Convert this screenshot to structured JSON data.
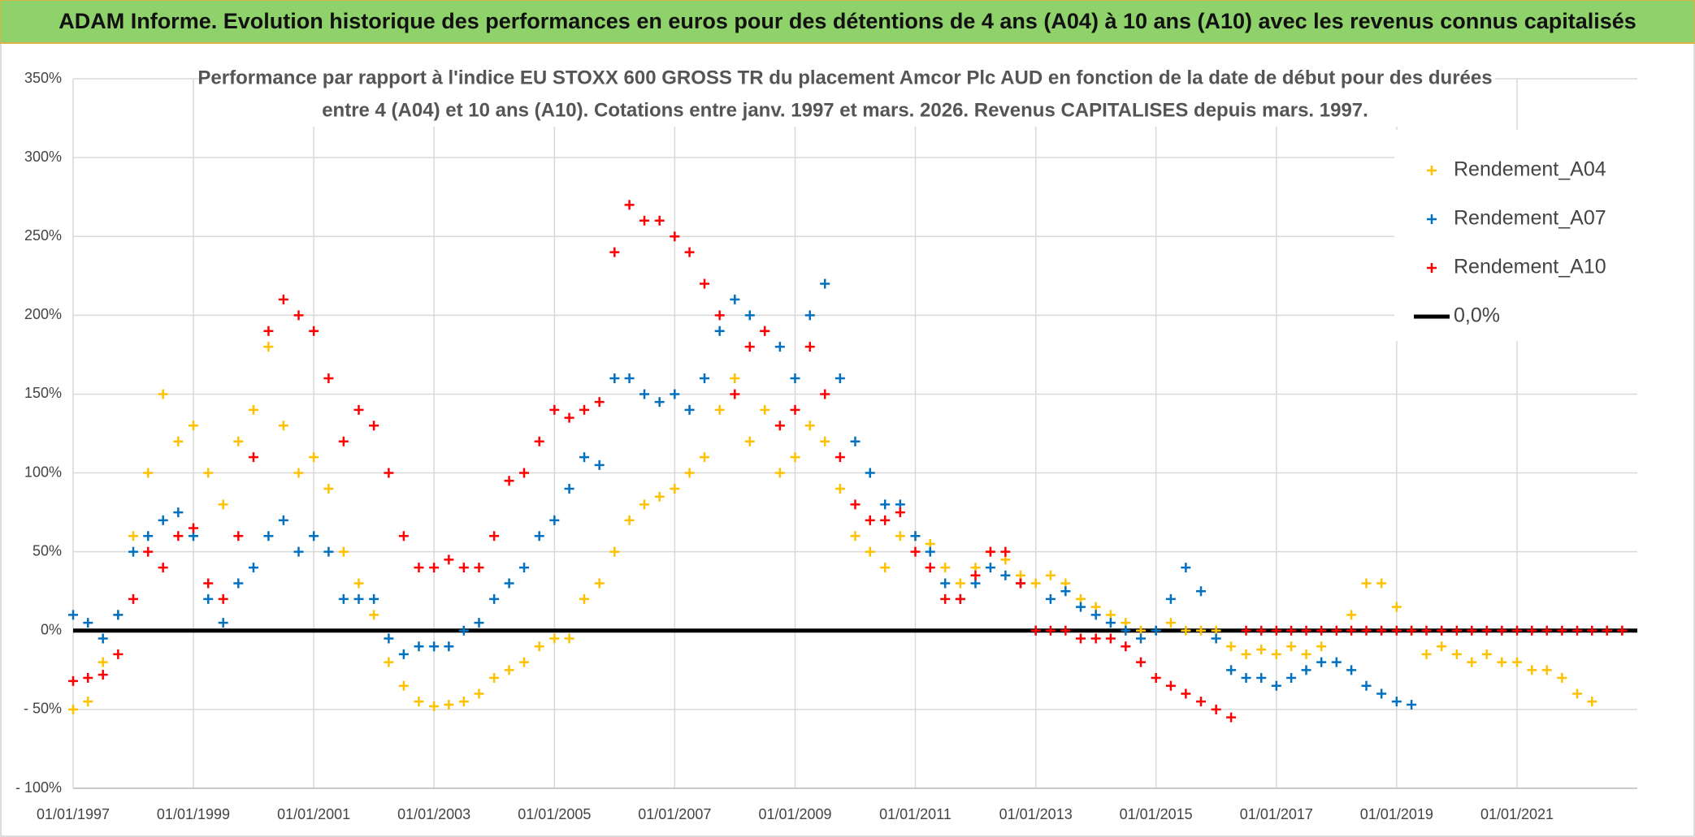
{
  "page_title": "ADAM Informe. Evolution historique des performances en euros pour des détentions de 4 ans (A04) à 10 ans (A10) avec les revenus connus capitalisés",
  "chart_data": {
    "type": "scatter",
    "title": [
      "Performance par rapport à l'indice EU STOXX 600 GROSS TR  du placement Amcor Plc AUD en fonction de la date de début pour des durées",
      "entre 4 (A04) et 10 ans (A10). Cotations entre janv. 1997 et mars. 2026. Revenus CAPITALISES depuis mars. 1997."
    ],
    "x": [
      "1997-01-01",
      "1997-04-01",
      "1997-07-01",
      "1997-10-01",
      "1998-01-01",
      "1998-04-01",
      "1998-07-01",
      "1998-10-01",
      "1999-01-01",
      "1999-04-01",
      "1999-07-01",
      "1999-10-01",
      "2000-01-01",
      "2000-04-01",
      "2000-07-01",
      "2000-10-01",
      "2001-01-01",
      "2001-04-01",
      "2001-07-01",
      "2001-10-01",
      "2002-01-01",
      "2002-04-01",
      "2002-07-01",
      "2002-10-01",
      "2003-01-01",
      "2003-04-01",
      "2003-07-01",
      "2003-10-01",
      "2004-01-01",
      "2004-04-01",
      "2004-07-01",
      "2004-10-01",
      "2005-01-01",
      "2005-04-01",
      "2005-07-01",
      "2005-10-01",
      "2006-01-01",
      "2006-04-01",
      "2006-07-01",
      "2006-10-01",
      "2007-01-01",
      "2007-04-01",
      "2007-07-01",
      "2007-10-01",
      "2008-01-01",
      "2008-04-01",
      "2008-07-01",
      "2008-10-01",
      "2009-01-01",
      "2009-04-01",
      "2009-07-01",
      "2009-10-01",
      "2010-01-01",
      "2010-04-01",
      "2010-07-01",
      "2010-10-01",
      "2011-01-01",
      "2011-04-01",
      "2011-07-01",
      "2011-10-01",
      "2012-01-01",
      "2012-04-01",
      "2012-07-01",
      "2012-10-01",
      "2013-01-01",
      "2013-04-01",
      "2013-07-01",
      "2013-10-01",
      "2014-01-01",
      "2014-04-01",
      "2014-07-01",
      "2014-10-01",
      "2015-01-01",
      "2015-04-01",
      "2015-07-01",
      "2015-10-01",
      "2016-01-01",
      "2016-04-01",
      "2016-07-01",
      "2016-10-01",
      "2017-01-01",
      "2017-04-01",
      "2017-07-01",
      "2017-10-01",
      "2018-01-01",
      "2018-04-01",
      "2018-07-01",
      "2018-10-01",
      "2019-01-01",
      "2019-04-01",
      "2019-07-01",
      "2019-10-01",
      "2020-01-01",
      "2020-04-01",
      "2020-07-01",
      "2020-10-01",
      "2021-01-01",
      "2021-04-01",
      "2021-07-01",
      "2021-10-01",
      "2022-01-01",
      "2022-04-01",
      "2022-07-01",
      "2022-10-01"
    ],
    "series": [
      {
        "name": "Rendement_A04",
        "color": "#FFC000",
        "values": [
          -50,
          -45,
          -20,
          10,
          60,
          100,
          150,
          120,
          130,
          100,
          80,
          120,
          140,
          180,
          130,
          100,
          110,
          90,
          50,
          30,
          10,
          -20,
          -35,
          -45,
          -48,
          -47,
          -45,
          -40,
          -30,
          -25,
          -20,
          -10,
          -5,
          -5,
          20,
          30,
          50,
          70,
          80,
          85,
          90,
          100,
          110,
          140,
          160,
          120,
          140,
          100,
          110,
          130,
          120,
          90,
          60,
          50,
          40,
          60,
          60,
          55,
          40,
          30,
          40,
          50,
          45,
          35,
          30,
          35,
          30,
          20,
          15,
          10,
          5,
          0,
          0,
          5,
          0,
          0,
          0,
          -10,
          -15,
          -12,
          -15,
          -10,
          -15,
          -10,
          0,
          10,
          30,
          30,
          15,
          0,
          -15,
          -10,
          -15,
          -20,
          -15,
          -20,
          -20,
          -25,
          -25,
          -30,
          -40,
          -45,
          0,
          0
        ]
      },
      {
        "name": "Rendement_A07",
        "color": "#0070C0",
        "values": [
          10,
          5,
          -5,
          10,
          50,
          60,
          70,
          75,
          60,
          20,
          5,
          30,
          40,
          60,
          70,
          50,
          60,
          50,
          20,
          20,
          20,
          -5,
          -15,
          -10,
          -10,
          -10,
          0,
          5,
          20,
          30,
          40,
          60,
          70,
          90,
          110,
          105,
          160,
          160,
          150,
          145,
          150,
          140,
          160,
          190,
          210,
          200,
          190,
          180,
          160,
          200,
          220,
          160,
          120,
          100,
          80,
          80,
          60,
          50,
          30,
          20,
          30,
          40,
          35,
          30,
          0,
          20,
          25,
          15,
          10,
          5,
          0,
          -5,
          0,
          20,
          40,
          25,
          -5,
          -25,
          -30,
          -30,
          -35,
          -30,
          -25,
          -20,
          -20,
          -25,
          -35,
          -40,
          -45,
          -47,
          null,
          null,
          null,
          null,
          null,
          null,
          null,
          null,
          null,
          null,
          null,
          null,
          null,
          null
        ]
      },
      {
        "name": "Rendement_A10",
        "color": "#FF0000",
        "values": [
          -32,
          -30,
          -28,
          -15,
          20,
          50,
          40,
          60,
          65,
          30,
          20,
          60,
          110,
          190,
          210,
          200,
          190,
          160,
          120,
          140,
          130,
          100,
          60,
          40,
          40,
          45,
          40,
          40,
          60,
          95,
          100,
          120,
          140,
          135,
          140,
          145,
          240,
          270,
          260,
          260,
          250,
          240,
          220,
          200,
          150,
          180,
          190,
          130,
          140,
          180,
          150,
          110,
          80,
          70,
          70,
          75,
          50,
          40,
          20,
          20,
          35,
          50,
          50,
          30,
          0,
          0,
          0,
          -5,
          -5,
          -5,
          -10,
          -20,
          -30,
          -35,
          -40,
          -45,
          -50,
          -55,
          0,
          0,
          0,
          0,
          0,
          0,
          0,
          0,
          0,
          0,
          0,
          0,
          0,
          0,
          0,
          0,
          0,
          0,
          0,
          0,
          0,
          0,
          0,
          0,
          0,
          0
        ]
      }
    ],
    "reference_line": {
      "name": "0,0%",
      "color": "#000000",
      "value": 0
    },
    "xlim": [
      "1997-01-01",
      "2023-01-01"
    ],
    "xticks": [
      {
        "value": "1997-01-01",
        "label": "01/01/1997"
      },
      {
        "value": "1999-01-01",
        "label": "01/01/1999"
      },
      {
        "value": "2001-01-01",
        "label": "01/01/2001"
      },
      {
        "value": "2003-01-01",
        "label": "01/01/2003"
      },
      {
        "value": "2005-01-01",
        "label": "01/01/2005"
      },
      {
        "value": "2007-01-01",
        "label": "01/01/2007"
      },
      {
        "value": "2009-01-01",
        "label": "01/01/2009"
      },
      {
        "value": "2011-01-01",
        "label": "01/01/2011"
      },
      {
        "value": "2013-01-01",
        "label": "01/01/2013"
      },
      {
        "value": "2015-01-01",
        "label": "01/01/2015"
      },
      {
        "value": "2017-01-01",
        "label": "01/01/2017"
      },
      {
        "value": "2019-01-01",
        "label": "01/01/2019"
      },
      {
        "value": "2021-01-01",
        "label": "01/01/2021"
      }
    ],
    "ylim": [
      -100,
      350
    ],
    "yticks": [
      {
        "value": -100,
        "label": "- 100%"
      },
      {
        "value": -50,
        "label": "- 50%"
      },
      {
        "value": 0,
        "label": "0%"
      },
      {
        "value": 50,
        "label": "50%"
      },
      {
        "value": 100,
        "label": "100%"
      },
      {
        "value": 150,
        "label": "150%"
      },
      {
        "value": 200,
        "label": "200%"
      },
      {
        "value": 250,
        "label": "250%"
      },
      {
        "value": 300,
        "label": "300%"
      },
      {
        "value": 350,
        "label": "350%"
      }
    ],
    "grid": true,
    "legend": "upper right"
  }
}
